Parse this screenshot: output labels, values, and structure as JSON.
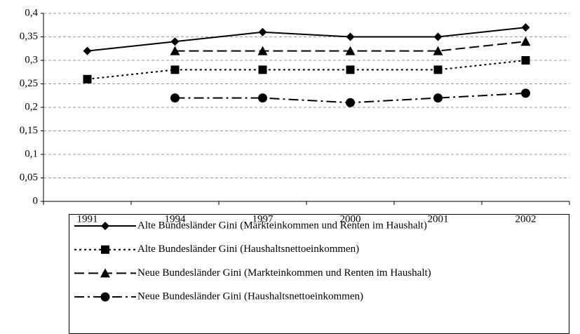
{
  "chart_data": {
    "type": "line",
    "categories": [
      "1991",
      "1994",
      "1997",
      "2000",
      "2001",
      "2002"
    ],
    "series": [
      {
        "name": "Alte Bundesländer Gini (Markteinkommen und Renten im Haushalt)",
        "color": "#000000",
        "line_style": "solid",
        "marker": "diamond",
        "values": [
          0.32,
          0.34,
          0.36,
          0.35,
          0.35,
          0.37
        ]
      },
      {
        "name": "Alte Bundesländer Gini (Haushaltsnettoeinkommen)",
        "color": "#000000",
        "line_style": "dotted",
        "marker": "square",
        "values": [
          0.26,
          0.28,
          0.28,
          0.28,
          0.28,
          0.3
        ]
      },
      {
        "name": "Neue Bundesländer Gini (Markteinkommen und Renten im Haushalt)",
        "color": "#000000",
        "line_style": "dashed",
        "marker": "triangle",
        "values": [
          null,
          0.32,
          0.32,
          0.32,
          0.32,
          0.34
        ]
      },
      {
        "name": "Neue Bundesländer Gini (Haushaltsnettoeinkommen)",
        "color": "#000000",
        "line_style": "dashdot",
        "marker": "circle",
        "values": [
          null,
          0.22,
          0.22,
          0.21,
          0.22,
          0.23
        ]
      }
    ],
    "ylim": [
      0,
      0.4
    ],
    "yticks": [
      0,
      {
        "value": 0.05,
        "label": "0,05"
      },
      {
        "value": 0.1,
        "label": "0,1"
      },
      {
        "value": 0.15,
        "label": "0,15"
      },
      {
        "value": 0.2,
        "label": "0,2"
      },
      {
        "value": 0.25,
        "label": "0,25"
      },
      {
        "value": 0.3,
        "label": "0,3"
      },
      {
        "value": 0.35,
        "label": "0,35"
      },
      {
        "value": 0.4,
        "label": "0,4"
      }
    ],
    "grid": true
  }
}
